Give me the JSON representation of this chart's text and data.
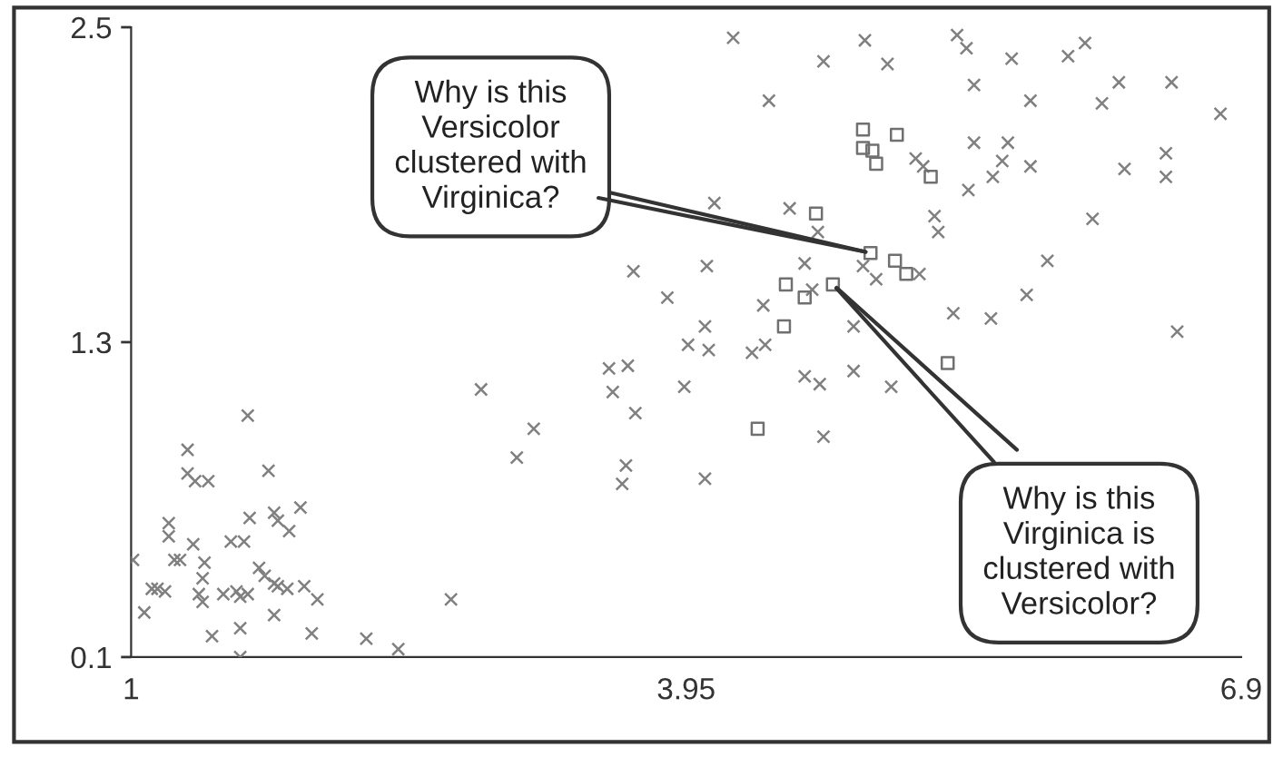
{
  "chart_data": {
    "type": "scatter",
    "xlim": [
      1,
      6.9
    ],
    "ylim": [
      0.1,
      2.5
    ],
    "xticks": [
      1,
      3.95,
      6.9
    ],
    "yticks": [
      0.1,
      1.3,
      2.5
    ],
    "grid": false,
    "legend": false,
    "series": [
      {
        "color": "#808080",
        "marker": "cross",
        "x": [
          2.86,
          3.14,
          3.05,
          1.62,
          1.3,
          1.3,
          1.34,
          1.41,
          1.73,
          1.63,
          1.76,
          1.78,
          1.84,
          1.9,
          1.2,
          1.2,
          1.33,
          1.53,
          1.6,
          1.01,
          1.23,
          1.26,
          1.39,
          1.68,
          1.38,
          1.71,
          1.76,
          1.78,
          1.83,
          1.92,
          1.11,
          1.14,
          1.18,
          1.36,
          1.38,
          1.49,
          1.56,
          1.62,
          1.58,
          1.99,
          2.7,
          1.07,
          1.76,
          1.58,
          1.43,
          1.96,
          2.25,
          2.42,
          1.58,
          4.2,
          4.9,
          4.68,
          5.02,
          4.39,
          4.1,
          4.5,
          4.65,
          3.67,
          4.06,
          4.58,
          4.89,
          4.96,
          4.62,
          3.85,
          4.36,
          4.05,
          3.96,
          4.07,
          4.37,
          4.3,
          4.84,
          3.54,
          3.64,
          3.56,
          3.94,
          3.68,
          4.58,
          4.66,
          4.84,
          5.04,
          4.68,
          3.63,
          3.61,
          4.05,
          5.39,
          5.44,
          5.68,
          5.98,
          6.07,
          5.48,
          5.78,
          6.25,
          6.16,
          6.53,
          6.79,
          5.17,
          5.21,
          5.48,
          5.66,
          5.63,
          5.58,
          5.78,
          5.45,
          6.28,
          6.5,
          6.5,
          5.27,
          5.29,
          6.11,
          5.87,
          5.19,
          5.76,
          5.37,
          5.57,
          6.56
        ],
        "values": [
          1.12,
          0.97,
          0.86,
          1.02,
          0.89,
          0.8,
          0.77,
          0.77,
          0.81,
          0.63,
          0.65,
          0.62,
          0.58,
          0.67,
          0.61,
          0.56,
          0.53,
          0.54,
          0.54,
          0.47,
          0.47,
          0.47,
          0.46,
          0.44,
          0.4,
          0.41,
          0.38,
          0.37,
          0.36,
          0.37,
          0.36,
          0.36,
          0.35,
          0.34,
          0.31,
          0.34,
          0.35,
          0.34,
          0.33,
          0.32,
          0.32,
          0.27,
          0.26,
          0.21,
          0.18,
          0.19,
          0.17,
          0.13,
          0.1,
          2.46,
          2.45,
          2.37,
          2.36,
          2.22,
          1.83,
          1.81,
          1.72,
          1.57,
          1.59,
          1.6,
          1.59,
          1.54,
          1.5,
          1.47,
          1.44,
          1.36,
          1.29,
          1.27,
          1.29,
          1.26,
          1.36,
          1.2,
          1.21,
          1.11,
          1.13,
          1.03,
          1.17,
          1.14,
          1.19,
          1.13,
          0.94,
          0.83,
          0.76,
          0.78,
          2.47,
          2.42,
          2.38,
          2.39,
          2.44,
          2.28,
          2.22,
          2.29,
          2.21,
          2.29,
          2.17,
          2.0,
          1.97,
          2.06,
          2.06,
          1.99,
          1.93,
          1.97,
          1.88,
          1.96,
          2.02,
          1.93,
          1.78,
          1.72,
          1.77,
          1.61,
          1.56,
          1.48,
          1.41,
          1.39,
          1.34
        ]
      },
      {
        "color": "#707070",
        "marker": "square",
        "x": [
          4.89,
          4.89,
          4.94,
          4.96,
          5.07,
          5.25,
          4.64,
          4.93,
          5.06,
          5.12,
          4.48,
          4.58,
          4.73,
          4.47,
          4.33,
          5.34
        ],
        "values": [
          2.11,
          2.04,
          2.03,
          1.98,
          2.09,
          1.93,
          1.79,
          1.64,
          1.61,
          1.56,
          1.52,
          1.47,
          1.52,
          1.36,
          0.97,
          1.22
        ]
      }
    ],
    "annotations": [
      {
        "text": "Why is this\nVersicolor\nclustered with\nVirginica?",
        "x": 4.93,
        "y": 1.64
      },
      {
        "text": "Why is this\nVirginica is\nclustered with\nVersicolor?",
        "x": 4.73,
        "y": 1.52
      }
    ]
  }
}
